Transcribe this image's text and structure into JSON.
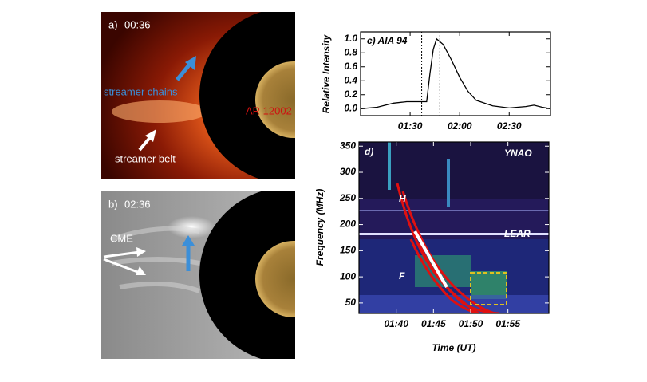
{
  "panels": [
    {
      "tag": "a)",
      "time": "00:36",
      "labels": [
        "streamer chains",
        "streamer belt",
        "AR 12002"
      ]
    },
    {
      "tag": "b)",
      "time": "02:36",
      "labels": [
        "CME"
      ]
    }
  ],
  "chart_data": [
    {
      "type": "line",
      "title": "c) AIA 94",
      "ylabel": "Relative Intensity",
      "x": [
        60,
        70,
        80,
        88,
        95,
        100,
        102,
        104,
        106,
        110,
        115,
        120,
        125,
        130,
        140,
        150,
        160,
        165,
        170,
        175
      ],
      "values": [
        0.0,
        0.02,
        0.08,
        0.1,
        0.1,
        0.1,
        0.5,
        0.85,
        1.0,
        0.92,
        0.7,
        0.45,
        0.25,
        0.12,
        0.04,
        0.01,
        0.03,
        0.05,
        0.02,
        0.0
      ],
      "color": "#000000",
      "vlines": [
        97,
        108
      ],
      "xlim": [
        60,
        175
      ],
      "ylim": [
        -0.1,
        1.1
      ],
      "xticks": [
        {
          "value": 90,
          "label": "01:30"
        },
        {
          "value": 120,
          "label": "02:00"
        },
        {
          "value": 150,
          "label": "02:30"
        }
      ],
      "yticks": [
        {
          "value": 0,
          "label": "0.0"
        },
        0.2,
        0.4,
        0.6,
        0.8,
        {
          "value": 1,
          "label": "1.0"
        }
      ]
    },
    {
      "type": "spectrogram",
      "title": "d)",
      "xlabel": "Time (UT)",
      "ylabel": "Frequency (MHz)",
      "annotations": [
        "YNAO",
        "LEAR",
        "H",
        "F"
      ],
      "xlim": [
        95,
        120.5
      ],
      "ylim": [
        30,
        358
      ],
      "xticks": [
        {
          "value": 100,
          "label": "01:40"
        },
        {
          "value": 105,
          "label": "01:45"
        },
        {
          "value": 110,
          "label": "01:50"
        },
        {
          "value": 115,
          "label": "01:55"
        }
      ],
      "yticks": [
        50,
        100,
        150,
        200,
        250,
        300,
        350
      ]
    }
  ]
}
